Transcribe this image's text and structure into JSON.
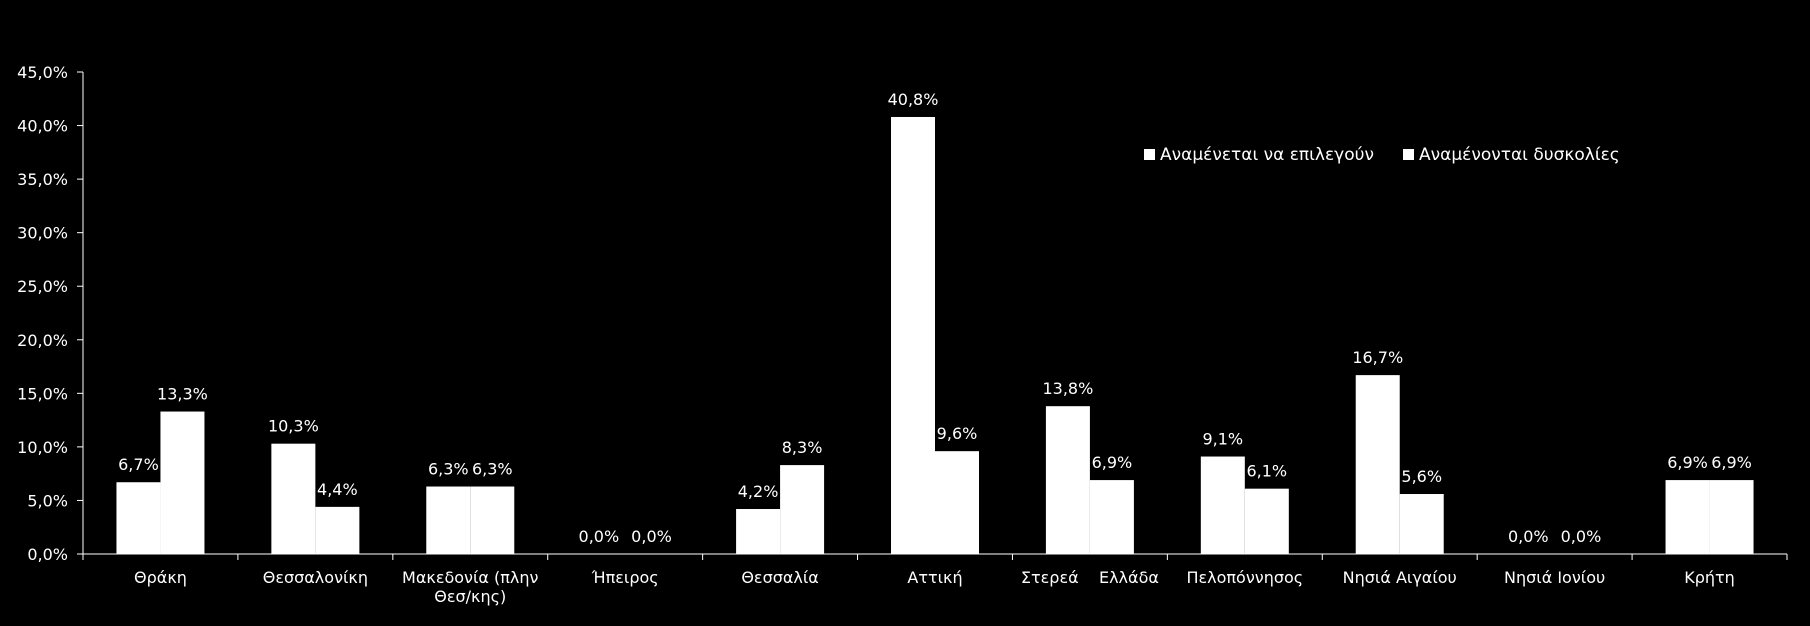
{
  "chart_data": {
    "type": "bar",
    "title": "",
    "xlabel": "",
    "ylabel": "",
    "ylim": [
      0,
      45
    ],
    "yticks": [
      "0,0%",
      "5,0%",
      "10,0%",
      "15,0%",
      "20,0%",
      "25,0%",
      "30,0%",
      "35,0%",
      "40,0%",
      "45,0%"
    ],
    "grid": false,
    "legend_position": "top-right",
    "categories": [
      [
        "Θράκη"
      ],
      [
        "Θεσσαλονίκη"
      ],
      [
        "Μακεδονία (πλην",
        "Θεσ/κης)"
      ],
      [
        "Ήπειρος"
      ],
      [
        "Θεσσαλία"
      ],
      [
        "Αττική"
      ],
      [
        "Στερεά    Ελλάδα"
      ],
      [
        "Πελοπόννησος"
      ],
      [
        "Νησιά Αιγαίου"
      ],
      [
        "Νησιά Ιονίου"
      ],
      [
        "Κρήτη"
      ]
    ],
    "series": [
      {
        "name": "Αναμένεται να επιλεγούν",
        "color": "#ffffff",
        "values": [
          6.7,
          10.3,
          6.3,
          0.0,
          4.2,
          40.8,
          13.8,
          9.1,
          16.7,
          0.0,
          6.9
        ],
        "labels": [
          "6,7%",
          "10,3%",
          "6,3%",
          "0,0%",
          "4,2%",
          "40,8%",
          "13,8%",
          "9,1%",
          "16,7%",
          "0,0%",
          "6,9%"
        ]
      },
      {
        "name": "Αναμένονται δυσκολίες",
        "color": "#ffffff",
        "values": [
          13.3,
          4.4,
          6.3,
          0.0,
          8.3,
          9.6,
          6.9,
          6.1,
          5.6,
          0.0,
          6.9
        ],
        "labels": [
          "13,3%",
          "4,4%",
          "6,3%",
          "0,0%",
          "8,3%",
          "9,6%",
          "6,9%",
          "6,1%",
          "5,6%",
          "0,0%",
          "6,9%"
        ]
      }
    ]
  }
}
